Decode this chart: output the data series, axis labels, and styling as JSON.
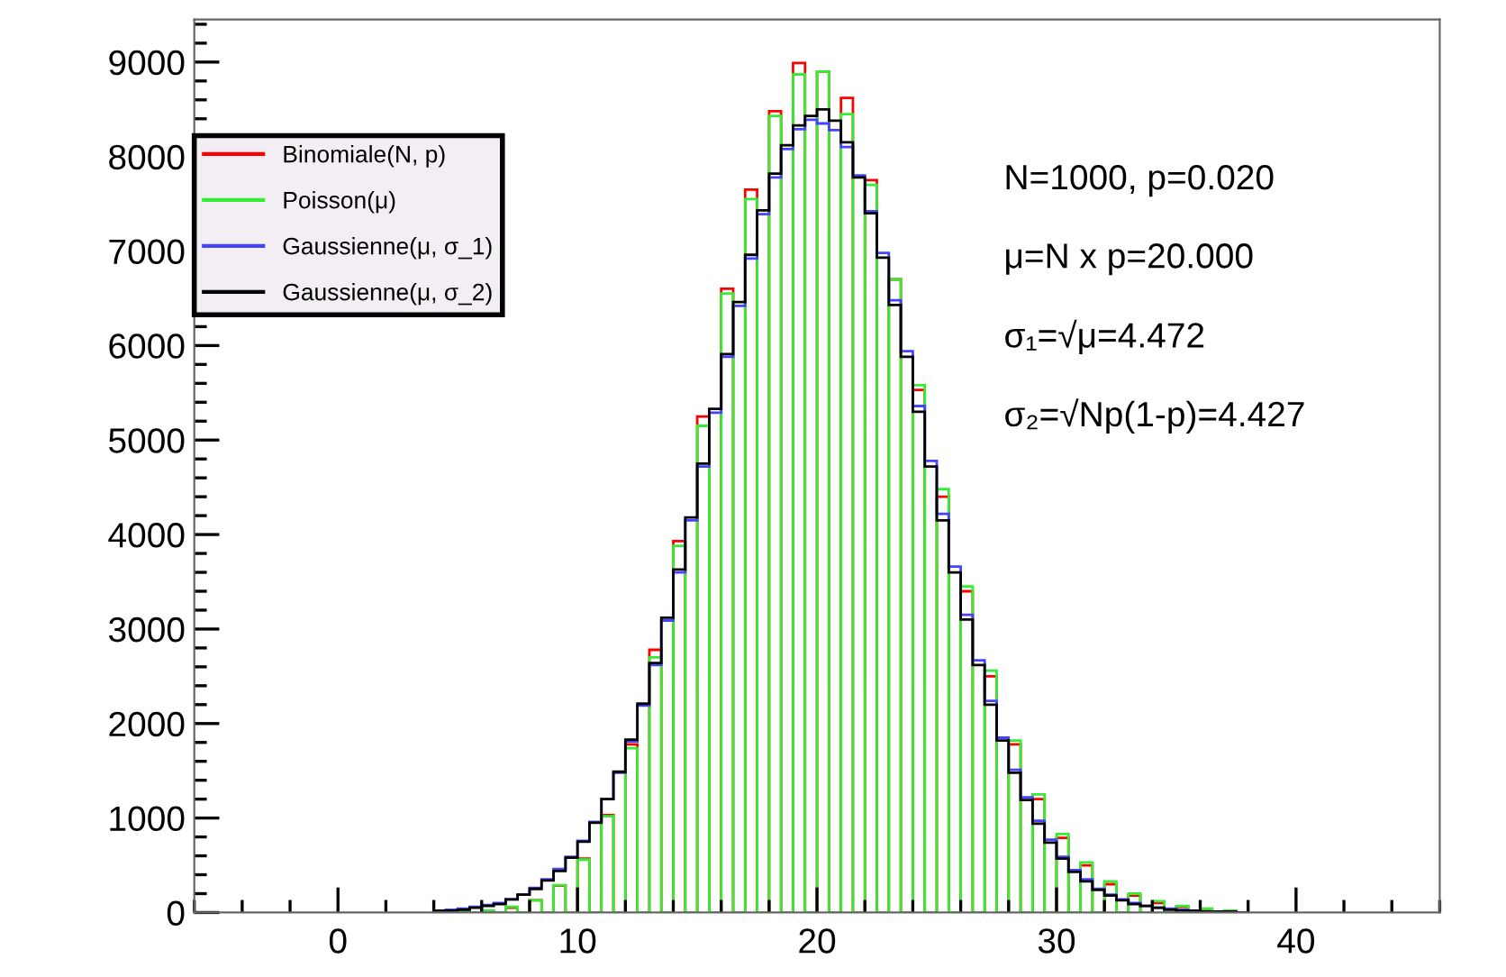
{
  "chart_data": {
    "type": "histogram",
    "bins": [
      4.0,
      4.5,
      5.0,
      5.5,
      6.0,
      6.5,
      7.0,
      7.5,
      8.0,
      8.5,
      9.0,
      9.5,
      10.0,
      10.5,
      11.0,
      11.5,
      12.0,
      12.5,
      13.0,
      13.5,
      14.0,
      14.5,
      15.0,
      15.5,
      16.0,
      16.5,
      17.0,
      17.5,
      18.0,
      18.5,
      19.0,
      19.5,
      20.0,
      20.5,
      21.0,
      21.5,
      22.0,
      22.5,
      23.0,
      23.5,
      24.0,
      24.5,
      25.0,
      25.5,
      26.0,
      26.5,
      27.0,
      27.5,
      28.0,
      28.5,
      29.0,
      29.5,
      30.0,
      30.5,
      31.0,
      31.5,
      32.0,
      32.5,
      33.0,
      33.5,
      34.0,
      34.5,
      35.0,
      35.5,
      36.0,
      36.5,
      37.0,
      37.5,
      38.0
    ],
    "series": [
      {
        "name": "Binomiale(N, p)",
        "color": "#ff0000",
        "values": [
          0,
          0,
          0,
          0,
          20,
          0,
          50,
          0,
          130,
          0,
          285,
          0,
          570,
          0,
          1030,
          0,
          1780,
          0,
          2780,
          0,
          3930,
          0,
          5250,
          0,
          6600,
          0,
          7650,
          0,
          8480,
          0,
          8990,
          0,
          8900,
          0,
          8620,
          0,
          7750,
          0,
          6700,
          0,
          5530,
          0,
          4400,
          0,
          3400,
          0,
          2500,
          0,
          1780,
          0,
          1200,
          0,
          790,
          0,
          500,
          0,
          300,
          0,
          180,
          0,
          100,
          0,
          60,
          0,
          30,
          0,
          10,
          0
        ]
      },
      {
        "name": "Poisson(μ)",
        "color": "#33ee33",
        "values": [
          0,
          0,
          10,
          0,
          20,
          0,
          60,
          0,
          130,
          0,
          290,
          0,
          560,
          0,
          1020,
          0,
          1740,
          0,
          2700,
          0,
          3880,
          0,
          5150,
          0,
          6550,
          0,
          7550,
          0,
          8430,
          0,
          8870,
          0,
          8900,
          0,
          8450,
          0,
          7700,
          0,
          6700,
          0,
          5580,
          0,
          4480,
          0,
          3450,
          0,
          2560,
          0,
          1820,
          0,
          1250,
          0,
          830,
          0,
          530,
          0,
          330,
          0,
          200,
          0,
          120,
          0,
          70,
          0,
          40,
          0,
          20,
          0
        ]
      },
      {
        "name": "Gaussienne(μ, σ_1)",
        "color": "#4444ff",
        "values": [
          20,
          30,
          40,
          60,
          80,
          100,
          140,
          190,
          260,
          350,
          460,
          590,
          760,
          960,
          1200,
          1480,
          1810,
          2190,
          2620,
          3090,
          3600,
          4150,
          4720,
          5290,
          5880,
          6420,
          6920,
          7390,
          7780,
          8080,
          8290,
          8390,
          8350,
          8280,
          8100,
          7800,
          7420,
          6980,
          6480,
          5940,
          5360,
          4780,
          4220,
          3660,
          3150,
          2670,
          2240,
          1850,
          1510,
          1220,
          970,
          770,
          590,
          450,
          350,
          250,
          190,
          140,
          100,
          70,
          50,
          40,
          30,
          20,
          10,
          10,
          10,
          0
        ]
      },
      {
        "name": "Gaussienne(μ, σ_2)",
        "color": "#000000",
        "values": [
          20,
          20,
          30,
          50,
          70,
          90,
          140,
          190,
          250,
          340,
          440,
          580,
          750,
          950,
          1200,
          1490,
          1830,
          2210,
          2640,
          3120,
          3630,
          4180,
          4750,
          5330,
          5910,
          6460,
          6960,
          7430,
          7820,
          8120,
          8330,
          8430,
          8500,
          8380,
          8150,
          7780,
          7400,
          6930,
          6430,
          5880,
          5300,
          4720,
          4150,
          3600,
          3100,
          2620,
          2200,
          1820,
          1480,
          1190,
          940,
          740,
          570,
          430,
          330,
          240,
          180,
          130,
          90,
          70,
          50,
          30,
          20,
          20,
          10,
          10,
          10,
          0
        ]
      }
    ],
    "xlim": [
      -6,
      46
    ],
    "xticks": [
      0,
      10,
      20,
      30,
      40
    ],
    "ylim": [
      0,
      9450
    ],
    "yticks": [
      0,
      1000,
      2000,
      3000,
      4000,
      5000,
      6000,
      7000,
      8000,
      9000
    ],
    "grid": false,
    "legend": "top left",
    "annotations": [
      "N=1000, p=0.020",
      "μ=N x p=20.000",
      "σ₁=√μ=4.472",
      "σ₂=√Np(1-p)=4.427"
    ]
  }
}
